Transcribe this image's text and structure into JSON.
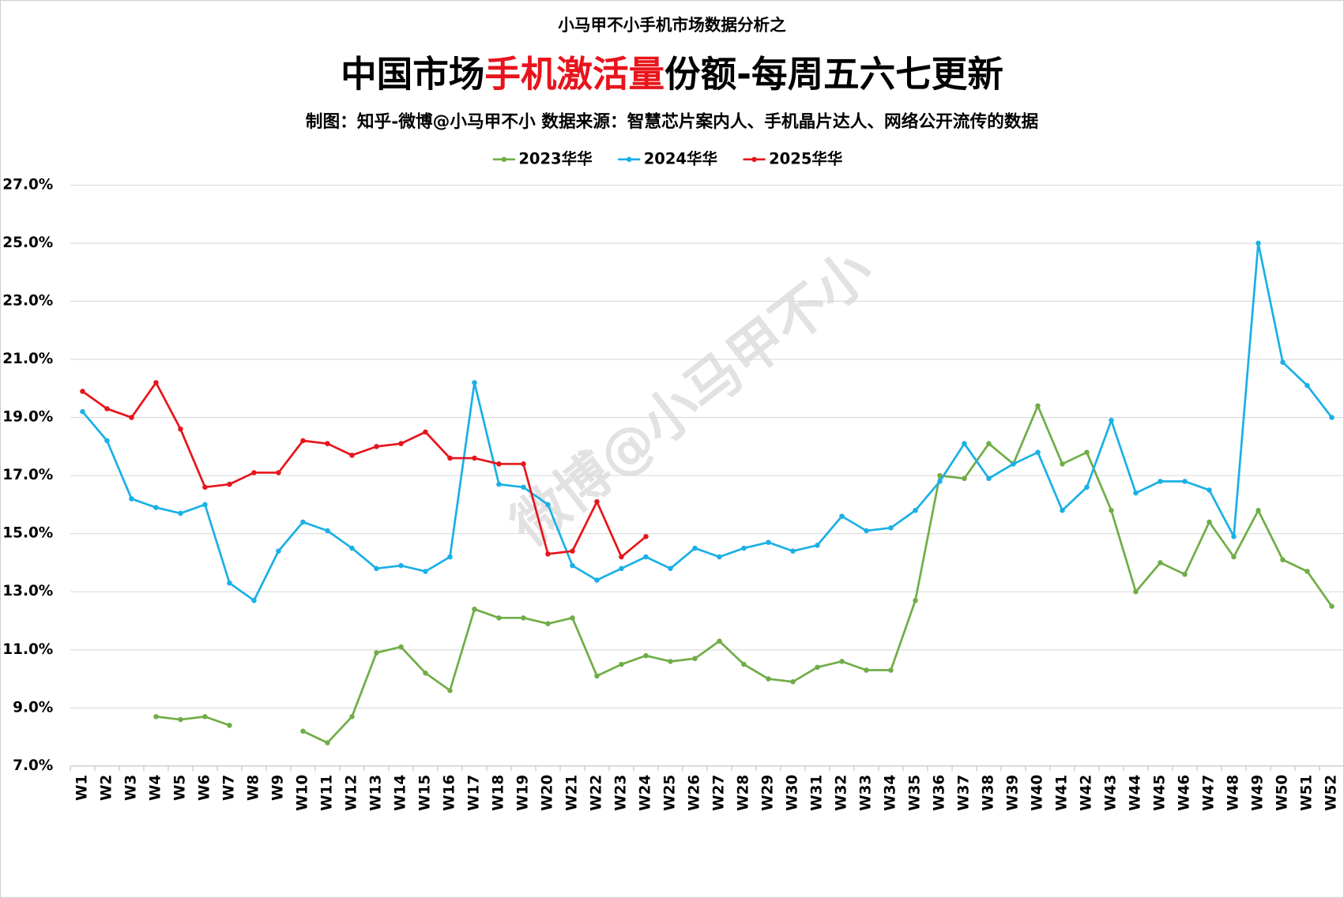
{
  "chart_data": {
    "type": "line",
    "supertitle": "小马甲不小手机市场数据分析之",
    "title_segments": [
      {
        "text": "中国市场",
        "color": "#000000"
      },
      {
        "text": "手机激活量",
        "color": "#e8141b"
      },
      {
        "text": "份额-每周五六七更新",
        "color": "#000000"
      }
    ],
    "subtitle": "制图：知乎-微博@小马甲不小  数据来源：智慧芯片案内人、手机晶片达人、网络公开流传的数据",
    "watermark": "微博@小马甲不小",
    "categories": [
      "W1",
      "W2",
      "W3",
      "W4",
      "W5",
      "W6",
      "W7",
      "W8",
      "W9",
      "W10",
      "W11",
      "W12",
      "W13",
      "W14",
      "W15",
      "W16",
      "W17",
      "W18",
      "W19",
      "W20",
      "W21",
      "W22",
      "W23",
      "W24",
      "W25",
      "W26",
      "W27",
      "W28",
      "W29",
      "W30",
      "W31",
      "W32",
      "W33",
      "W34",
      "W35",
      "W36",
      "W37",
      "W38",
      "W39",
      "W40",
      "W41",
      "W42",
      "W43",
      "W44",
      "W45",
      "W46",
      "W47",
      "W48",
      "W49",
      "W50",
      "W51",
      "W52"
    ],
    "series": [
      {
        "name": "2023华华",
        "color": "#70ad47",
        "values": [
          null,
          null,
          null,
          8.7,
          8.6,
          8.7,
          8.4,
          null,
          null,
          8.2,
          7.8,
          8.7,
          10.9,
          11.1,
          10.2,
          9.6,
          12.4,
          12.1,
          12.1,
          11.9,
          12.1,
          10.1,
          10.5,
          10.8,
          10.6,
          10.7,
          11.3,
          10.5,
          10.0,
          9.9,
          10.4,
          10.6,
          10.3,
          10.3,
          12.7,
          17.0,
          16.9,
          18.1,
          17.4,
          19.4,
          17.4,
          17.8,
          15.8,
          13.0,
          14.0,
          13.6,
          15.4,
          14.2,
          15.8,
          14.1,
          13.7,
          12.5
        ]
      },
      {
        "name": "2024华华",
        "color": "#1ab0e6",
        "values": [
          19.2,
          18.2,
          16.2,
          15.9,
          15.7,
          16.0,
          13.3,
          12.7,
          14.4,
          15.4,
          15.1,
          14.5,
          13.8,
          13.9,
          13.7,
          14.2,
          20.2,
          16.7,
          16.6,
          16.0,
          13.9,
          13.4,
          13.8,
          14.2,
          13.8,
          14.5,
          14.2,
          14.5,
          14.7,
          14.4,
          14.6,
          15.6,
          15.1,
          15.2,
          15.8,
          16.8,
          18.1,
          16.9,
          17.4,
          17.8,
          15.8,
          16.6,
          18.9,
          16.4,
          16.8,
          16.8,
          16.5,
          14.9,
          25.0,
          20.9,
          20.1,
          19.0
        ]
      },
      {
        "name": "2025华华",
        "color": "#e8141b",
        "values": [
          19.9,
          19.3,
          19.0,
          20.2,
          18.6,
          16.6,
          16.7,
          17.1,
          17.1,
          18.2,
          18.1,
          17.7,
          18.0,
          18.1,
          18.5,
          17.6,
          17.6,
          17.4,
          17.4,
          14.3,
          14.4,
          16.1,
          14.2,
          14.9,
          null,
          null,
          null,
          null,
          null,
          null,
          null,
          null,
          null,
          null,
          null,
          null,
          null,
          null,
          null,
          null,
          null,
          null,
          null,
          null,
          null,
          null,
          null,
          null,
          null,
          null,
          null,
          null
        ]
      }
    ],
    "ylim": [
      7,
      27
    ],
    "yticks": [
      {
        "value": 7,
        "label": "7.0%"
      },
      {
        "value": 9,
        "label": "9.0%"
      },
      {
        "value": 11,
        "label": "11.0%"
      },
      {
        "value": 13,
        "label": "13.0%"
      },
      {
        "value": 15,
        "label": "15.0%"
      },
      {
        "value": 17,
        "label": "17.0%"
      },
      {
        "value": 19,
        "label": "19.0%"
      },
      {
        "value": 21,
        "label": "21.0%"
      },
      {
        "value": 23,
        "label": "23.0%"
      },
      {
        "value": 25,
        "label": "25.0%"
      },
      {
        "value": 27,
        "label": "27.0%"
      }
    ],
    "grid": true,
    "legend": "top"
  }
}
